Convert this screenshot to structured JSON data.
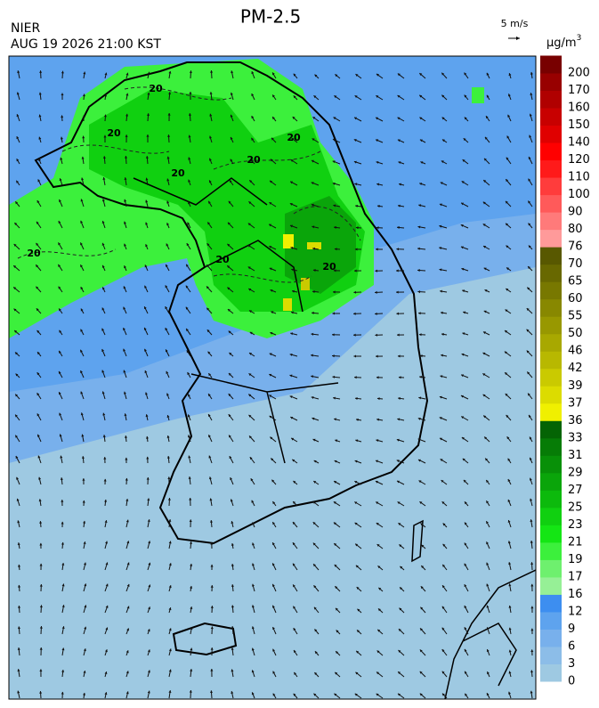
{
  "title": "PM-2.5",
  "source": "NIER",
  "timestamp": "AUG 19 2026 21:00 KST",
  "wind_scale": "5 m/s",
  "unit": {
    "base": "μg/m",
    "superscript": "3"
  },
  "colorbar": {
    "levels": [
      0,
      3,
      6,
      9,
      12,
      16,
      17,
      19,
      21,
      23,
      25,
      27,
      29,
      31,
      33,
      36,
      37,
      39,
      42,
      46,
      50,
      55,
      60,
      65,
      70,
      76,
      80,
      90,
      100,
      110,
      120,
      140,
      150,
      160,
      170,
      200
    ],
    "colors": [
      "#9ec9e2",
      "#8cbde8",
      "#78b0ec",
      "#5ea3ee",
      "#3d8ef0",
      "#96f096",
      "#6ef06e",
      "#3cf03c",
      "#14e614",
      "#10d010",
      "#0cba0c",
      "#0aa50a",
      "#089008",
      "#067c06",
      "#046404",
      "#f0f000",
      "#dcdc00",
      "#caca00",
      "#b8b800",
      "#a8a800",
      "#989800",
      "#888800",
      "#787800",
      "#686800",
      "#585800",
      "#ff9a9a",
      "#ff7a7a",
      "#ff5a5a",
      "#ff3c3c",
      "#ff1a1a",
      "#ff0000",
      "#e00000",
      "#c80000",
      "#b00000",
      "#980000",
      "#780000"
    ]
  },
  "contour_labels": [
    "20",
    "20",
    "20",
    "20",
    "20",
    "20",
    "20",
    "20"
  ]
}
